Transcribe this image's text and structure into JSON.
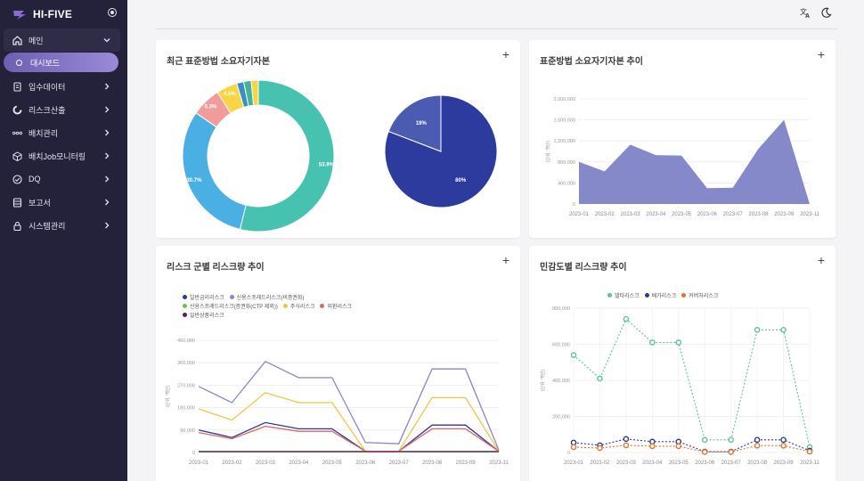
{
  "app": {
    "title": "HI-FIVE"
  },
  "sidebar": {
    "items": [
      {
        "label": "메인",
        "icon": "home-icon"
      },
      {
        "label": "대시보드",
        "icon": "circle-icon"
      },
      {
        "label": "입수데이터",
        "icon": "document-icon"
      },
      {
        "label": "리스크산출",
        "icon": "donut-chart-icon"
      },
      {
        "label": "배치관리",
        "icon": "nodes-icon"
      },
      {
        "label": "배치Job모니터링",
        "icon": "cube-icon"
      },
      {
        "label": "DQ",
        "icon": "check-circle-icon"
      },
      {
        "label": "보고서",
        "icon": "report-icon"
      },
      {
        "label": "시스템관리",
        "icon": "lock-icon"
      }
    ]
  },
  "cards": {
    "c1": {
      "title": "최근 표준방법 소요자기자본",
      "plus": "+"
    },
    "c2": {
      "title": "표준방법 소요자기자본 추이",
      "plus": "+"
    },
    "c3": {
      "title": "리스크 군별 리스크량 추이",
      "plus": "+"
    },
    "c4": {
      "title": "민감도별 리스크량 추이",
      "plus": "+"
    }
  },
  "chart_data": [
    {
      "type": "pie",
      "variant": "donut",
      "slices": [
        {
          "label": "53.9%",
          "value": 53.9,
          "color": "#47c2b1"
        },
        {
          "label": "30.7%",
          "value": 30.7,
          "color": "#4ab0e3"
        },
        {
          "label": "6.3%",
          "value": 6.3,
          "color": "#f29b9b"
        },
        {
          "label": "4.5%",
          "value": 4.5,
          "color": "#f7d545"
        },
        {
          "label": "",
          "value": 1.5,
          "color": "#3a8fbf"
        },
        {
          "label": "",
          "value": 1.6,
          "color": "#44b39a"
        },
        {
          "label": "",
          "value": 1.5,
          "color": "#f7d545"
        }
      ]
    },
    {
      "type": "pie",
      "slices": [
        {
          "label": "80%",
          "value": 80,
          "color": "#2d3a9e"
        },
        {
          "label": "19%",
          "value": 19,
          "color": "#4b5cb0"
        }
      ]
    },
    {
      "type": "area",
      "ylabel": "(단위: 백만)",
      "categories": [
        "2023-01",
        "2023-02",
        "2023-03",
        "2023-04",
        "2023-05",
        "2023-06",
        "2023-07",
        "2023-08",
        "2023-09",
        "2023-11"
      ],
      "yticks": [
        "0",
        "400,000",
        "800,000",
        "1,200,000",
        "1,600,000",
        "2,000,000"
      ],
      "ylim": [
        0,
        2000000
      ],
      "color": "#7f83c6",
      "values": [
        800000,
        620000,
        1130000,
        930000,
        920000,
        300000,
        310000,
        1050000,
        1600000,
        0
      ]
    },
    {
      "type": "line",
      "ylabel": "(단위: 백만)",
      "categories": [
        "2023-01",
        "2023-02",
        "2023-03",
        "2023-04",
        "2023-05",
        "2023-06",
        "2023-07",
        "2023-08",
        "2023-09",
        "2023-11"
      ],
      "yticks": [
        "0",
        "90,000",
        "180,000",
        "270,000",
        "360,000",
        "450,000"
      ],
      "ylim": [
        0,
        450000
      ],
      "series": [
        {
          "name": "일반금리리스크",
          "color": "#2b3990",
          "values": [
            90000,
            60000,
            120000,
            95000,
            95000,
            5000,
            5000,
            110000,
            110000,
            5000
          ]
        },
        {
          "name": "신용스프레드리스크(비증권화)",
          "color": "#8c86c4",
          "values": [
            265000,
            200000,
            365000,
            300000,
            300000,
            40000,
            35000,
            335000,
            335000,
            10000
          ]
        },
        {
          "name": "신용스프레드리스크(증권화(CTP 제외))",
          "color": "#72c04c",
          "values": [
            5000,
            5000,
            5000,
            5000,
            5000,
            5000,
            5000,
            5000,
            5000,
            5000
          ]
        },
        {
          "name": "주식리스크",
          "color": "#f2c443",
          "values": [
            175000,
            130000,
            240000,
            200000,
            200000,
            5000,
            5000,
            220000,
            220000,
            5000
          ]
        },
        {
          "name": "외환리스크",
          "color": "#d96a6a",
          "values": [
            80000,
            55000,
            105000,
            85000,
            85000,
            5000,
            5000,
            95000,
            95000,
            5000
          ]
        },
        {
          "name": "일반상품리스크",
          "color": "#5a1d5e",
          "values": [
            3000,
            3000,
            3000,
            3000,
            3000,
            3000,
            3000,
            3000,
            3000,
            3000
          ]
        }
      ]
    },
    {
      "type": "line",
      "ylabel": "(단위: 백만)",
      "categories": [
        "2023-01",
        "2023-02",
        "2023-03",
        "2023-04",
        "2023-05",
        "2023-06",
        "2023-07",
        "2023-08",
        "2023-09",
        "2023-11"
      ],
      "yticks": [
        "0",
        "200,000",
        "400,000",
        "600,000",
        "800,000"
      ],
      "ylim": [
        0,
        800000
      ],
      "series": [
        {
          "name": "델타리스크",
          "color": "#5ac2a0",
          "values": [
            540000,
            410000,
            740000,
            610000,
            610000,
            70000,
            70000,
            680000,
            680000,
            30000
          ]
        },
        {
          "name": "베가리스크",
          "color": "#2b3990",
          "values": [
            55000,
            40000,
            75000,
            60000,
            60000,
            5000,
            5000,
            70000,
            70000,
            10000
          ]
        },
        {
          "name": "커버처리스크",
          "color": "#e8702a",
          "values": [
            30000,
            25000,
            40000,
            35000,
            35000,
            3000,
            3000,
            38000,
            38000,
            5000
          ]
        }
      ]
    }
  ]
}
